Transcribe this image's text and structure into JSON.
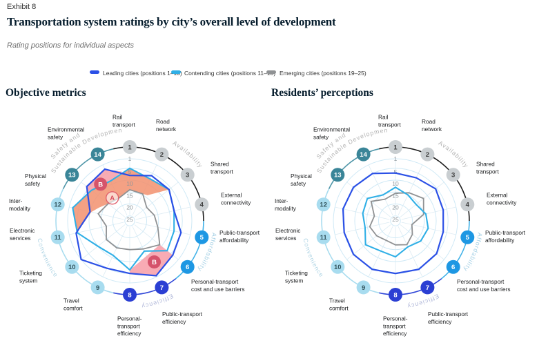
{
  "header": {
    "exhibit": "Exhibit 8",
    "title": "Transportation system ratings by city’s overall level of development",
    "subtitle": "Rating positions for individual aspects"
  },
  "legend": {
    "items": [
      {
        "label": "Leading cities (positions 1–10)",
        "color": "#2b50e6"
      },
      {
        "label": "Contending cities (positions 11–18)",
        "color": "#2fafe6"
      },
      {
        "label": "Emerging cities (positions 19–25)",
        "color": "#8f9193"
      }
    ]
  },
  "sections": [
    {
      "title": "Objective metrics"
    },
    {
      "title": "Residents’ perceptions"
    }
  ],
  "chart_data": {
    "type": "radar",
    "rank_scale": "position 1 (best) on outer ring to position 25 (worst) at center",
    "radial_ticks": [
      1,
      5,
      10,
      15,
      20,
      25
    ],
    "axes": [
      {
        "n": 1,
        "label": "Rail transport",
        "lines": [
          "Rail",
          "transport"
        ]
      },
      {
        "n": 2,
        "label": "Road network",
        "lines": [
          "Road",
          "network"
        ]
      },
      {
        "n": 3,
        "label": "Shared transport",
        "lines": [
          "Shared",
          "transport"
        ]
      },
      {
        "n": 4,
        "label": "External connectivity",
        "lines": [
          "External",
          "connectivity"
        ]
      },
      {
        "n": 5,
        "label": "Public-transport affordability",
        "lines": [
          "Public-transport",
          "affordability"
        ]
      },
      {
        "n": 6,
        "label": "Personal-transport cost and use barriers",
        "lines": [
          "Personal-transport",
          "cost and use barriers"
        ]
      },
      {
        "n": 7,
        "label": "Public-transport efficiency",
        "lines": [
          "Public-transport",
          "efficiency"
        ]
      },
      {
        "n": 8,
        "label": "Personal-transport efficiency",
        "lines": [
          "Personal-",
          "transport",
          "efficiency"
        ]
      },
      {
        "n": 9,
        "label": "Travel comfort",
        "lines": [
          "Travel",
          "comfort"
        ]
      },
      {
        "n": 10,
        "label": "Ticketing system",
        "lines": [
          "Ticketing",
          "system"
        ]
      },
      {
        "n": 11,
        "label": "Electronic services",
        "lines": [
          "Electronic",
          "services"
        ]
      },
      {
        "n": 12,
        "label": "Inter-modality",
        "lines": [
          "Inter-",
          "modality"
        ]
      },
      {
        "n": 13,
        "label": "Physical safety",
        "lines": [
          "Physical",
          "safety"
        ]
      },
      {
        "n": 14,
        "label": "Environmental safety",
        "lines": [
          "Environmental",
          "safety"
        ]
      }
    ],
    "categories": [
      {
        "name": "Availability",
        "label_lines": [
          "Availability"
        ],
        "axes": [
          1,
          4
        ],
        "arc_color": "#1c1c1c",
        "badge_color": "#c9ced1",
        "badge_text_color": "#3c3c3c",
        "label_color": "#b2b2b2"
      },
      {
        "name": "Affordability",
        "label_lines": [
          "Affordability"
        ],
        "axes": [
          5,
          6
        ],
        "arc_color": "#41b2e8",
        "badge_color": "#1d97e3",
        "badge_text_color": "#ffffff",
        "label_color": "#a3cfe4"
      },
      {
        "name": "Efficiency",
        "label_lines": [
          "Efficiency"
        ],
        "axes": [
          7,
          8
        ],
        "arc_color": "#2f46d8",
        "badge_color": "#2b3fd3",
        "badge_text_color": "#ffffff",
        "label_color": "#b0b7d9"
      },
      {
        "name": "Convenience",
        "label_lines": [
          "Convenience"
        ],
        "axes": [
          9,
          12
        ],
        "arc_color": "#a8dcef",
        "badge_color": "#a8dcef",
        "badge_text_color": "#33555e",
        "label_color": "#aed4e4"
      },
      {
        "name": "Safety and Sustainable Development",
        "label_lines": [
          "Safety and",
          "Sustainable Development"
        ],
        "axes": [
          13,
          14
        ],
        "arc_color": "#4f96a8",
        "badge_color": "#3a8598",
        "badge_text_color": "#ffffff",
        "label_color": "#b2b2b2"
      }
    ],
    "marker_colors": {
      "solid_fill": "#d5536b",
      "solid_text": "#ffffff",
      "outline_stroke": "#e0606c",
      "outline_text": "#d84f60"
    },
    "highlight_colors": {
      "band": "#f2906e",
      "callout": "#f7a2ac"
    },
    "charts": [
      {
        "title": "Objective metrics",
        "series": [
          {
            "name": "Leading cities (positions 1–10)",
            "color": "#2b50e6",
            "values": [
              8,
              6,
              6,
              8,
              5,
              4,
              1.5,
              5,
              5,
              1,
              4,
              10,
              4,
              3
            ]
          },
          {
            "name": "Contending cities (positions 11–18)",
            "color": "#2fafe6",
            "values": [
              5,
              7.5,
              6,
              8,
              8,
              7,
              13,
              6.5,
              11,
              10,
              4.5,
              2.5,
              6.5,
              8.5
            ]
          },
          {
            "name": "Emerging cities (positions 19–25)",
            "color": "#8f9193",
            "values": [
              14,
              14.5,
              18,
              16.5,
              15,
              11,
              14,
              15,
              14.5,
              14.5,
              17,
              13.5,
              15.5,
              16.5
            ]
          }
        ],
        "highlights": [
          {
            "name": "band-contending-vs-emerging",
            "color": "#f2906e",
            "opacity": 0.85,
            "points": [
              [
                11,
                4.3
              ],
              [
                12,
                2.5
              ],
              [
                13,
                6.5
              ],
              [
                14,
                8.5
              ],
              [
                15,
                5
              ],
              [
                16,
                7.5
              ],
              [
                17,
                6
              ],
              [
                16.35,
                14
              ],
              [
                16,
                14.5
              ],
              [
                15,
                14
              ],
              [
                14,
                16.5
              ],
              [
                13,
                15.5
              ],
              [
                12.4,
                13
              ],
              [
                12,
                10.5
              ]
            ]
          },
          {
            "name": "callout-safety",
            "color": "#f7a2ac",
            "opacity": 0.9,
            "points": [
              [
                12.76,
                5.5
              ],
              [
                13,
                4
              ],
              [
                14,
                3
              ],
              [
                14.65,
                6.2
              ],
              [
                14,
                8.5
              ],
              [
                13,
                6.5
              ]
            ]
          },
          {
            "name": "callout-efficiency",
            "color": "#f7a2ac",
            "opacity": 0.9,
            "points": [
              [
                6,
                11
              ],
              [
                6,
                4
              ],
              [
                7,
                1.5
              ],
              [
                8,
                5
              ],
              [
                8,
                6.4
              ]
            ]
          }
        ],
        "markers": [
          {
            "label": "A",
            "axis": 13.55,
            "rank": 15,
            "style": "outline"
          },
          {
            "label": "B",
            "axis": 13.5,
            "rank": 7.4,
            "style": "solid"
          },
          {
            "label": "B",
            "axis": 6.8,
            "rank": 7,
            "style": "solid"
          }
        ]
      },
      {
        "title": "Residents’ perceptions",
        "series": [
          {
            "name": "Leading cities (positions 1–10)",
            "color": "#2b50e6",
            "values": [
              7,
              7,
              5.5,
              6.5,
              6.5,
              5,
              4.5,
              5,
              4.5,
              4.5,
              5,
              4.5,
              4.5,
              5
            ]
          },
          {
            "name": "Contending cities (positions 11–18)",
            "color": "#2fafe6",
            "values": [
              13,
              15,
              16,
              14,
              13,
              13.5,
              15,
              12,
              13,
              11,
              14,
              13,
              12,
              15
            ]
          },
          {
            "name": "Emerging cities (positions 19–25)",
            "color": "#8f9193",
            "values": [
              15.5,
              14,
              12,
              15,
              20,
              18,
              16,
              17,
              18,
              17,
              16,
              18,
              14,
              17
            ]
          }
        ],
        "highlights": [],
        "markers": []
      }
    ]
  }
}
